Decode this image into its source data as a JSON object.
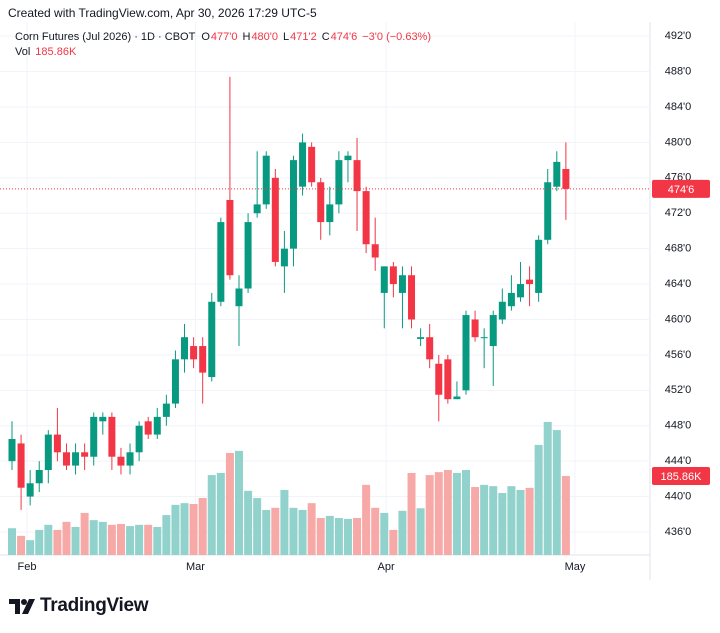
{
  "header": "Created with TradingView.com, Apr 30, 2026 17:29 UTC-5",
  "footer_logo": "TradingView",
  "chart_data": {
    "type": "candlestick",
    "legend": {
      "symbol": "Corn Futures (Jul 2026) · 1D · CBOT",
      "fields": [
        {
          "key": "O",
          "value": "477'0"
        },
        {
          "key": "H",
          "value": "480'0"
        },
        {
          "key": "L",
          "value": "471'2"
        },
        {
          "key": "C",
          "value": "474'6"
        }
      ],
      "change": "−3'0 (−0.63%)",
      "volume_key": "Vol",
      "volume_value": "185.86K"
    },
    "up_color": "#089981",
    "down_color": "#f23645",
    "volume_up_color": "#92d2cc",
    "volume_down_color": "#f7a9a7",
    "open": [
      444,
      446,
      440,
      441.5,
      443,
      447,
      445,
      443.5,
      445,
      444.5,
      448.5,
      449,
      444.5,
      443.5,
      445,
      448.5,
      447,
      449,
      450.5,
      455.5,
      457,
      457,
      453.5,
      462,
      473.5,
      461.5,
      463.5,
      472,
      473,
      476,
      466,
      468,
      475,
      479.5,
      475.5,
      471,
      473,
      478,
      478,
      474.5,
      468.5,
      463,
      466,
      463,
      465,
      457.8,
      458,
      455,
      455.5,
      451,
      452,
      460,
      458,
      457,
      460,
      461.5,
      462.5,
      464.5,
      463,
      469,
      475,
      477
    ],
    "high": [
      448.5,
      447,
      443,
      444,
      447.5,
      450,
      446,
      446,
      446,
      449.5,
      449.5,
      449.5,
      445.5,
      446,
      448.5,
      449,
      450,
      451.5,
      456.5,
      459.5,
      458,
      458,
      463,
      471.5,
      487.4,
      465,
      472,
      479,
      479,
      477,
      470,
      478.5,
      481,
      480,
      476,
      475,
      479,
      479,
      480.5,
      475,
      471.5,
      466,
      466.5,
      466,
      466,
      459,
      459.5,
      456,
      456,
      453,
      461,
      461,
      459,
      461,
      463.5,
      465,
      466.5,
      466,
      469.5,
      477,
      479,
      480
    ],
    "low": [
      443,
      438.5,
      439,
      440.5,
      441.5,
      444,
      443,
      442.5,
      443,
      443.5,
      447,
      443,
      442.5,
      442.5,
      444,
      446.5,
      446.5,
      448,
      450,
      454,
      454.5,
      450.5,
      453,
      461.5,
      464.5,
      457,
      463,
      471.5,
      472.5,
      466,
      463,
      466,
      474,
      475,
      469,
      469.5,
      472,
      475.5,
      470,
      467.5,
      465.5,
      459,
      462.5,
      459,
      459,
      457,
      454.5,
      448.5,
      450.5,
      451,
      451.5,
      457.5,
      454.5,
      452.5,
      459.5,
      461,
      462,
      461.5,
      462,
      468.5,
      474.5,
      471.25
    ],
    "close": [
      446.5,
      441,
      441.5,
      443,
      447,
      445,
      443.5,
      445,
      444.5,
      449,
      449,
      444.5,
      443.5,
      445,
      448,
      447,
      449,
      450.5,
      455.5,
      458,
      455.5,
      454,
      462,
      471,
      465,
      463.5,
      471,
      473,
      478.5,
      466.5,
      468,
      478,
      480,
      475.5,
      471,
      473,
      478,
      478.5,
      474.5,
      468.5,
      467,
      466,
      464,
      465,
      460,
      458,
      455.5,
      451.5,
      451,
      451.3,
      460.5,
      458,
      458,
      460.5,
      462,
      463,
      464,
      464,
      469,
      475.5,
      477.8,
      474.75
    ],
    "volume": [
      63,
      45,
      35,
      59,
      71,
      59,
      78,
      66,
      99,
      82,
      78,
      71,
      73,
      68,
      71,
      71,
      66,
      94,
      118,
      122,
      120,
      134,
      188,
      193,
      240,
      245,
      151,
      134,
      106,
      111,
      153,
      111,
      106,
      122,
      87,
      92,
      87,
      85,
      87,
      165,
      111,
      99,
      59,
      104,
      193,
      110,
      188,
      195,
      200,
      193,
      200,
      160,
      165,
      162,
      146,
      162,
      153,
      158,
      259,
      313,
      294,
      185.86
    ],
    "volume_last_label": "185.86K",
    "last_price": {
      "value": 474.75,
      "label": "474'6"
    },
    "ylim": [
      433.4,
      493.6
    ],
    "yticks": [
      {
        "value": 492,
        "label": "492'0"
      },
      {
        "value": 488,
        "label": "488'0"
      },
      {
        "value": 484,
        "label": "484'0"
      },
      {
        "value": 480,
        "label": "480'0"
      },
      {
        "value": 476,
        "label": "476'0"
      },
      {
        "value": 472,
        "label": "472'0"
      },
      {
        "value": 468,
        "label": "468'0"
      },
      {
        "value": 464,
        "label": "464'0"
      },
      {
        "value": 460,
        "label": "460'0"
      },
      {
        "value": 456,
        "label": "456'0"
      },
      {
        "value": 452,
        "label": "452'0"
      },
      {
        "value": 448,
        "label": "448'0"
      },
      {
        "value": 444,
        "label": "444'0"
      },
      {
        "value": 440,
        "label": "440'0"
      },
      {
        "value": 436,
        "label": "436'0"
      }
    ],
    "xticks": [
      {
        "value": 1.65,
        "label": "Feb"
      },
      {
        "value": 20.2,
        "label": "Mar"
      },
      {
        "value": 41.2,
        "label": "Apr"
      },
      {
        "value": 62,
        "label": "May"
      }
    ],
    "grid": true
  }
}
